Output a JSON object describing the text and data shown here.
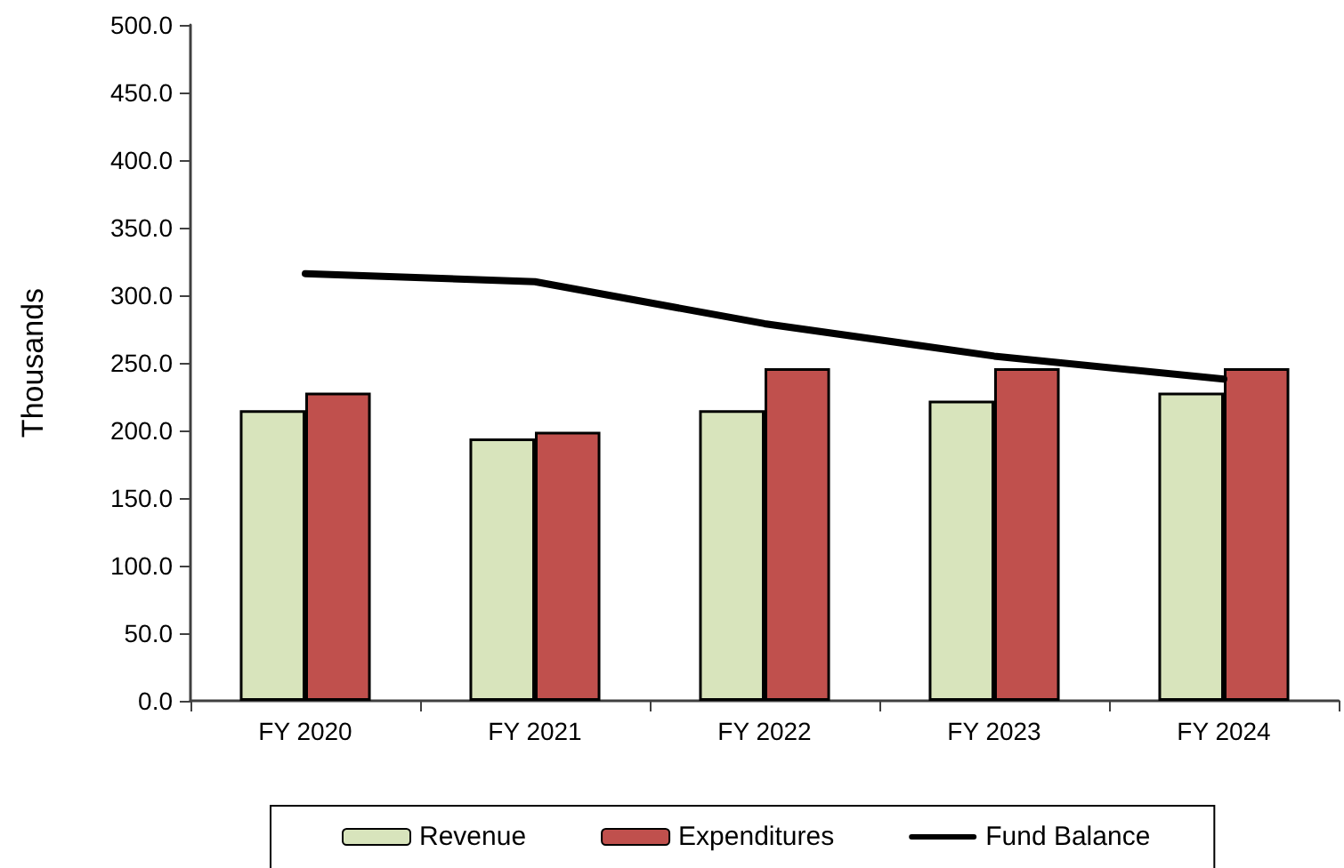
{
  "chart_data": {
    "type": "bar",
    "categories": [
      "FY 2020",
      "FY 2021",
      "FY 2022",
      "FY 2023",
      "FY 2024"
    ],
    "ylabel": "Thousands",
    "series": [
      {
        "name": "Revenue",
        "color": "#d8e4bc",
        "values": [
          215,
          194,
          215,
          222,
          228
        ]
      },
      {
        "name": "Expenditures",
        "color": "#c0504d",
        "values": [
          228,
          199,
          246,
          246,
          246
        ]
      },
      {
        "name": "Fund Balance",
        "type": "line",
        "color": "#000000",
        "values": [
          316,
          310,
          279,
          255,
          238
        ]
      }
    ],
    "ylim": [
      0,
      500
    ],
    "yticks": [
      {
        "value": 0,
        "label": "0.0"
      },
      {
        "value": 50,
        "label": "50.0"
      },
      {
        "value": 100,
        "label": "100.0"
      },
      {
        "value": 150,
        "label": "150.0"
      },
      {
        "value": 200,
        "label": "200.0"
      },
      {
        "value": 250,
        "label": "250.0"
      },
      {
        "value": 300,
        "label": "300.0"
      },
      {
        "value": 350,
        "label": "350.0"
      },
      {
        "value": 400,
        "label": "400.0"
      },
      {
        "value": 450,
        "label": "450.0"
      },
      {
        "value": 500,
        "label": "500.0"
      }
    ],
    "legend": "bottom",
    "marker": "none"
  }
}
